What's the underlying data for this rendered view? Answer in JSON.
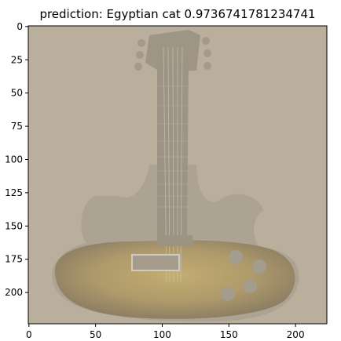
{
  "title": "prediction: Egyptian cat 0.9736741781234741",
  "image_description_tag": "washed-out photo of an electric guitar (sunburst body) on beige background",
  "axes": {
    "x_ticks": [
      0,
      50,
      100,
      150,
      200
    ],
    "y_ticks": [
      0,
      25,
      50,
      75,
      100,
      125,
      150,
      175,
      200
    ],
    "x_range": [
      -0.5,
      223.5
    ],
    "y_range": [
      -0.5,
      223.5
    ]
  },
  "colors": {
    "background_image": "#b7ab9a",
    "guitar_gray": "#a39a8b",
    "sunburst_dark": "#6e5f3e",
    "sunburst_light": "#bfa65f",
    "axis": "#000000"
  }
}
